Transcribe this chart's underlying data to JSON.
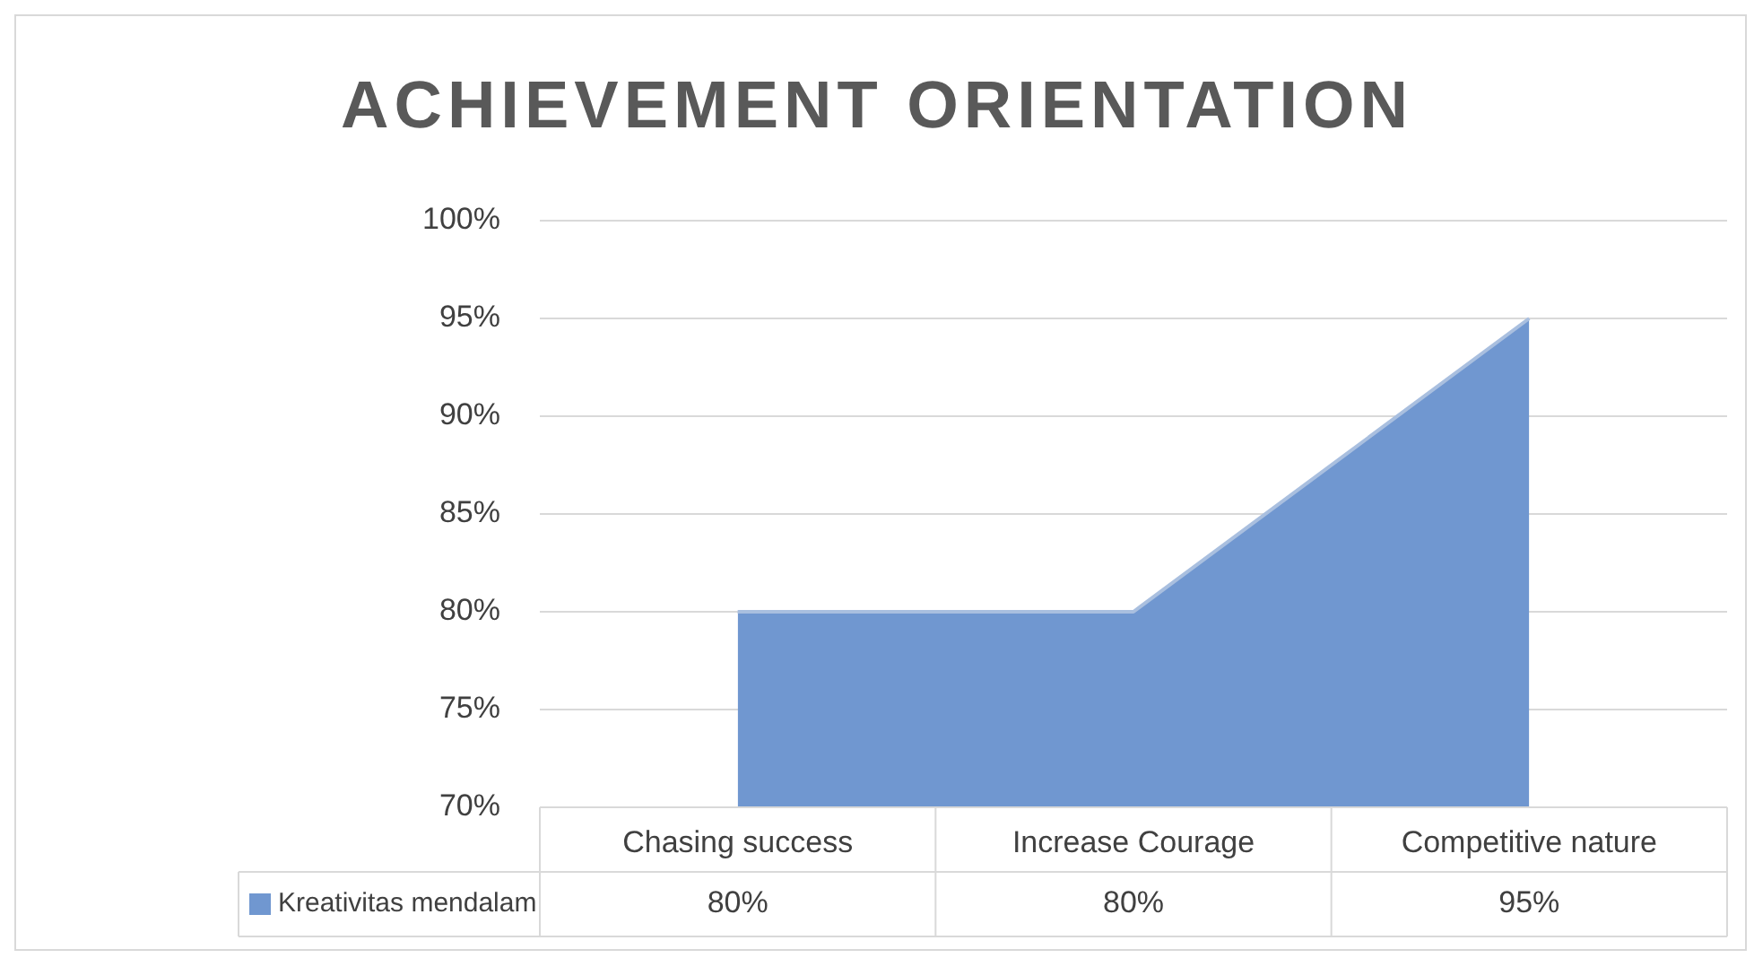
{
  "chart_data": {
    "type": "area",
    "title": "ACHIEVEMENT ORIENTATION",
    "categories": [
      "Chasing success",
      "Increase Courage",
      "Competitive nature"
    ],
    "series": [
      {
        "name": "Kreativitas mendalam",
        "color": "#7097d0",
        "values": [
          80,
          80,
          95
        ],
        "value_labels": [
          "80%",
          "80%",
          "95%"
        ]
      }
    ],
    "ylim": [
      70,
      100
    ],
    "yticks": [
      {
        "value": 70,
        "label": "70%"
      },
      {
        "value": 75,
        "label": "75%"
      },
      {
        "value": 80,
        "label": "80%"
      },
      {
        "value": 85,
        "label": "85%"
      },
      {
        "value": 90,
        "label": "90%"
      },
      {
        "value": 95,
        "label": "95%"
      },
      {
        "value": 100,
        "label": "100%"
      }
    ],
    "grid": "y"
  }
}
